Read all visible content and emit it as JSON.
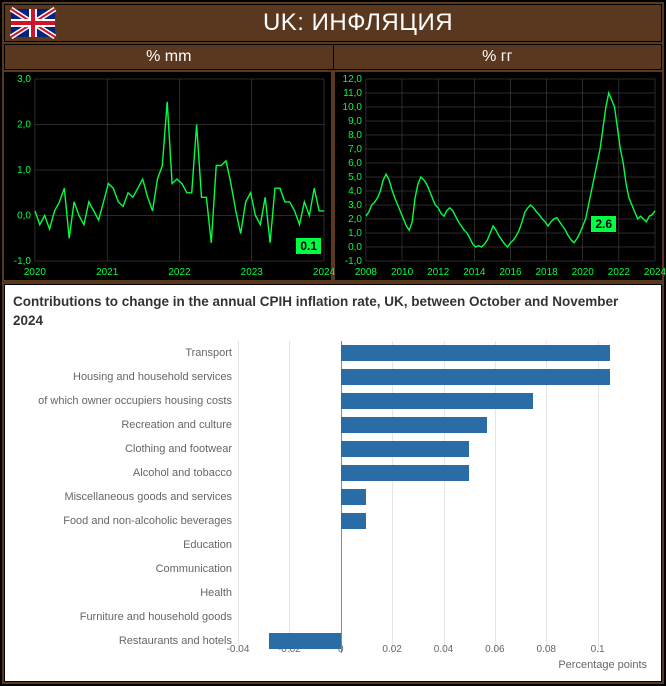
{
  "header": {
    "title": "UK: ИНФЛЯЦИЯ"
  },
  "subheads": {
    "left": "% mm",
    "right": "% гг"
  },
  "chart_mm": {
    "type": "line",
    "background_color": "#000000",
    "line_color": "#00ff41",
    "axis_color": "#555555",
    "label_color": "#00ff41",
    "font_size": 10,
    "ylim": [
      -1.0,
      3.0
    ],
    "ytick_step": 1.0,
    "xlabels": [
      "2020",
      "2021",
      "2022",
      "2023",
      "2024"
    ],
    "badge_value": "0.1",
    "values": [
      0.1,
      -0.2,
      0.0,
      -0.3,
      0.1,
      0.3,
      0.6,
      -0.5,
      0.3,
      0.0,
      -0.2,
      0.3,
      0.1,
      -0.1,
      0.3,
      0.7,
      0.6,
      0.3,
      0.2,
      0.5,
      0.4,
      0.6,
      0.8,
      0.4,
      0.1,
      0.8,
      1.1,
      2.5,
      0.7,
      0.8,
      0.7,
      0.5,
      0.5,
      2.0,
      0.4,
      0.4,
      -0.6,
      1.1,
      1.1,
      1.2,
      0.7,
      0.1,
      -0.4,
      0.3,
      0.5,
      0.0,
      -0.2,
      0.4,
      -0.6,
      0.6,
      0.6,
      0.3,
      0.3,
      0.1,
      -0.2,
      0.3,
      0.0,
      0.6,
      0.1,
      0.1
    ]
  },
  "chart_yy": {
    "type": "line",
    "background_color": "#000000",
    "line_color": "#00ff41",
    "axis_color": "#555555",
    "label_color": "#00ff41",
    "font_size": 10,
    "ylim": [
      -1.0,
      12.0
    ],
    "ytick_step": 1.0,
    "xlabels": [
      "2008",
      "2010",
      "2012",
      "2014",
      "2016",
      "2018",
      "2020",
      "2022",
      "2024"
    ],
    "badge_value": "2.6",
    "values": [
      2.2,
      2.5,
      3.0,
      3.2,
      3.5,
      4.0,
      4.8,
      5.2,
      4.8,
      4.1,
      3.5,
      3.0,
      2.5,
      2.0,
      1.5,
      1.2,
      1.8,
      3.5,
      4.5,
      5.0,
      4.8,
      4.5,
      4.0,
      3.5,
      3.0,
      2.8,
      2.4,
      2.2,
      2.6,
      2.8,
      2.6,
      2.2,
      1.8,
      1.5,
      1.2,
      1.0,
      0.6,
      0.2,
      0.0,
      0.1,
      0.0,
      0.2,
      0.5,
      1.0,
      1.5,
      1.2,
      0.8,
      0.5,
      0.2,
      0.0,
      0.3,
      0.5,
      0.8,
      1.2,
      1.8,
      2.5,
      2.8,
      3.0,
      2.8,
      2.5,
      2.3,
      2.0,
      1.8,
      1.5,
      1.8,
      2.0,
      2.1,
      1.8,
      1.5,
      1.2,
      0.8,
      0.5,
      0.3,
      0.6,
      1.0,
      1.5,
      2.0,
      3.0,
      4.0,
      5.0,
      6.0,
      7.0,
      8.5,
      10.0,
      11.0,
      10.5,
      10.0,
      8.5,
      7.0,
      6.0,
      4.5,
      3.5,
      3.0,
      2.5,
      2.0,
      2.2,
      2.0,
      1.8,
      2.2,
      2.3,
      2.6
    ]
  },
  "bar_chart": {
    "type": "bar-horizontal",
    "title": "Contributions to change in the annual CPIH inflation rate, UK, between October and November 2024",
    "x_axis_label": "Percentage points",
    "xlim": [
      -0.04,
      0.12
    ],
    "xtick_step": 0.02,
    "xticks": [
      "-0.04",
      "-0.02",
      "0",
      "0.02",
      "0.04",
      "0.06",
      "0.08",
      "0.1"
    ],
    "bar_color": "#2a6ca6",
    "zero_line_color": "#888888",
    "label_color": "#666666",
    "label_fontsize": 11,
    "tick_fontsize": 10,
    "categories": [
      {
        "label": "Transport",
        "value": 0.105
      },
      {
        "label": "Housing and household services",
        "value": 0.105
      },
      {
        "label": "of which owner occupiers housing costs",
        "value": 0.075
      },
      {
        "label": "Recreation and culture",
        "value": 0.057
      },
      {
        "label": "Clothing and footwear",
        "value": 0.05
      },
      {
        "label": "Alcohol and tobacco",
        "value": 0.05
      },
      {
        "label": "Miscellaneous goods and services",
        "value": 0.01
      },
      {
        "label": "Food and non-alcoholic beverages",
        "value": 0.01
      },
      {
        "label": "Education",
        "value": 0.0
      },
      {
        "label": "Communication",
        "value": 0.0
      },
      {
        "label": "Health",
        "value": 0.0
      },
      {
        "label": "Furniture and household goods",
        "value": 0.0
      },
      {
        "label": "Restaurants and hotels",
        "value": -0.028
      }
    ]
  }
}
